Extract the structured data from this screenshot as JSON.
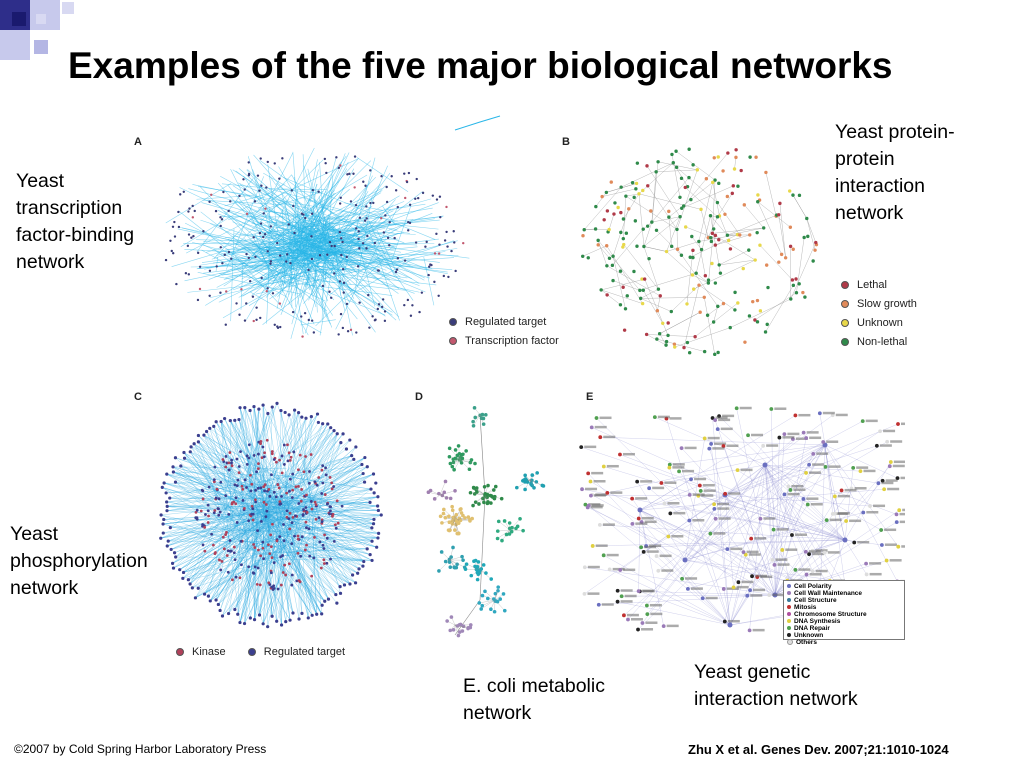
{
  "title": "Examples of the five major biological networks",
  "panels": {
    "A": {
      "letter": "A",
      "caption": "Yeast\ntranscription\nfactor-binding\nnetwork",
      "legend": [
        "Regulated target",
        "Transcription factor"
      ],
      "colors": {
        "edge": "#29b6e8",
        "target": "#3a3d7a",
        "tf": "#c2586e"
      }
    },
    "B": {
      "letter": "B",
      "caption": "Yeast protein-\nprotein\ninteraction\nnetwork",
      "legend": [
        "Lethal",
        "Slow growth",
        "Unknown",
        "Non-lethal"
      ],
      "colors": {
        "lethal": "#b03a48",
        "slow": "#e08a5a",
        "unknown": "#e8d84a",
        "nonlethal": "#2f8a4a",
        "edge": "#9a9a9a"
      }
    },
    "C": {
      "letter": "C",
      "caption": "Yeast\nphosphorylation\nnetwork",
      "legend": [
        "Kinase",
        "Regulated target"
      ],
      "colors": {
        "edge": "#2aa8e0",
        "kinase": "#b0415a",
        "target": "#3b3f8f"
      }
    },
    "D": {
      "letter": "D",
      "caption": "E. coli metabolic\nnetwork"
    },
    "E": {
      "letter": "E",
      "caption": "Yeast genetic\ninteraction network",
      "legend": [
        "Cell Polarity",
        "Cell Wall Maintenance",
        "Cell Structure",
        "Mitosis",
        "Chromosome Structure",
        "DNA Synthesis",
        "DNA Repair",
        "Unknown",
        "Others"
      ],
      "colors": [
        "#6a6fc0",
        "#9a7ab8",
        "#3a7a9a",
        "#c03030",
        "#b050a0",
        "#e0d040",
        "#50a050",
        "#222222",
        "#dddddd"
      ]
    }
  },
  "footer": {
    "copyright": "©2007 by Cold Spring Harbor Laboratory Press",
    "citation": "Zhu X et al. Genes Dev. 2007;21:1010-1024"
  }
}
